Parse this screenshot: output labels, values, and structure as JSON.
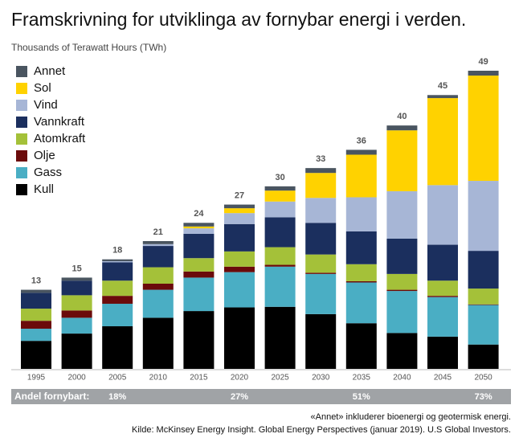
{
  "chart_data": {
    "type": "stacked_bar",
    "title": "Framskrivning for utviklinga av fornybar energi i verden.",
    "subtitle": "Thousands of Terawatt Hours (TWh)",
    "categories": [
      "1995",
      "2000",
      "2005",
      "2010",
      "2015",
      "2020",
      "2025",
      "2030",
      "2035",
      "2040",
      "2045",
      "2050"
    ],
    "series": [
      {
        "name": "Kull",
        "color": "#000000",
        "values": [
          4.6,
          5.8,
          7.0,
          8.4,
          9.5,
          10.1,
          10.2,
          9.0,
          7.5,
          5.9,
          5.3,
          4.0
        ]
      },
      {
        "name": "Gass",
        "color": "#4aaec4",
        "values": [
          2.0,
          2.6,
          3.7,
          4.6,
          5.5,
          5.8,
          6.6,
          6.6,
          6.7,
          6.9,
          6.5,
          6.5
        ]
      },
      {
        "name": "Olje",
        "color": "#6b0b0b",
        "values": [
          1.3,
          1.2,
          1.3,
          1.0,
          1.0,
          0.9,
          0.3,
          0.2,
          0.2,
          0.2,
          0.2,
          0.1
        ]
      },
      {
        "name": "Atomkraft",
        "color": "#a4c139",
        "values": [
          2.0,
          2.5,
          2.5,
          2.7,
          2.2,
          2.5,
          2.9,
          3.0,
          2.8,
          2.6,
          2.5,
          2.6
        ]
      },
      {
        "name": "Vannkraft",
        "color": "#1b2f5e",
        "values": [
          2.6,
          2.4,
          3.0,
          3.5,
          4.0,
          4.5,
          4.9,
          5.2,
          5.4,
          5.8,
          5.9,
          6.2
        ]
      },
      {
        "name": "Vind",
        "color": "#a7b6d6",
        "values": [
          0,
          0,
          0.2,
          0.3,
          0.9,
          1.8,
          2.6,
          4.1,
          5.6,
          7.8,
          9.8,
          11.5
        ]
      },
      {
        "name": "Sol",
        "color": "#ffd200",
        "values": [
          0,
          0,
          0,
          0,
          0.3,
          0.8,
          1.8,
          4.1,
          7.0,
          10.0,
          14.3,
          17.3
        ]
      },
      {
        "name": "Annet",
        "color": "#4a5560",
        "values": [
          0.5,
          0.5,
          0.3,
          0.5,
          0.6,
          0.6,
          0.7,
          0.8,
          0.8,
          0.8,
          0.5,
          0.8
        ]
      }
    ],
    "totals": [
      13,
      15,
      18,
      21,
      24,
      27,
      30,
      33,
      36,
      40,
      45,
      49
    ],
    "renewable_share": {
      "label": "Andel fornybart:",
      "values": [
        null,
        null,
        18,
        null,
        null,
        27,
        null,
        null,
        51,
        null,
        null,
        73
      ],
      "value_labels": [
        null,
        null,
        "18%",
        null,
        null,
        "27%",
        null,
        null,
        "51%",
        null,
        null,
        "73%"
      ]
    },
    "notes": [
      "«Annet» inkluderer bioenergi og geotermisk energi.",
      "Kilde: McKinsey Energy Insight. Global Energy Perspectives (januar 2019). U.S Global Investors."
    ]
  }
}
